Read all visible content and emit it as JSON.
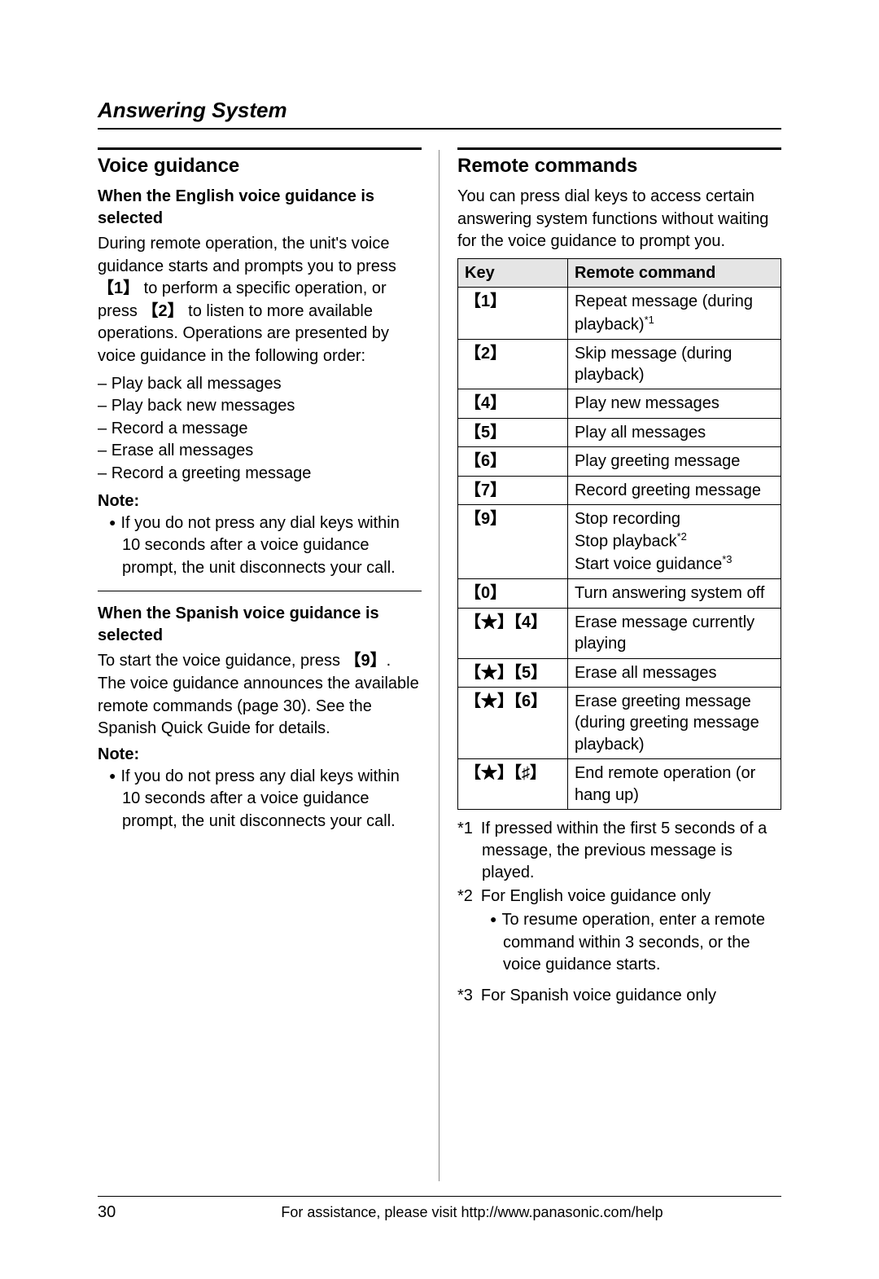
{
  "doc": {
    "sectionTitle": "Answering System",
    "pageNumber": "30",
    "footer": "For assistance, please visit http://www.panasonic.com/help"
  },
  "left": {
    "heading": "Voice guidance",
    "en": {
      "title": "When the English voice guidance is selected",
      "intro1": "During remote operation, the unit's voice guidance starts and prompts you to press ",
      "key1": "1",
      "intro2": " to perform a specific operation, or press ",
      "key2": "2",
      "intro3": " to listen to more available operations. Operations are presented by voice guidance in the following order:",
      "list": [
        "Play back all messages",
        "Play back new messages",
        "Record a message",
        "Erase all messages",
        "Record a greeting message"
      ],
      "noteLabel": "Note:",
      "note": "If you do not press any dial keys within 10 seconds after a voice guidance prompt, the unit disconnects your call."
    },
    "es": {
      "title": "When the Spanish voice guidance is selected",
      "intro1": "To start the voice guidance, press ",
      "key9": "9",
      "intro2": ". The voice guidance announces the available remote commands (page 30). See the Spanish Quick Guide for details.",
      "noteLabel": "Note:",
      "note": "If you do not press any dial keys within 10 seconds after a voice guidance prompt, the unit disconnects your call."
    }
  },
  "right": {
    "heading": "Remote commands",
    "intro": "You can press dial keys to access certain answering system functions without waiting for the voice guidance to prompt you.",
    "table": {
      "headKey": "Key",
      "headCmd": "Remote command",
      "rows": [
        {
          "keyHtml": "<span class='key'>1</span>",
          "cmdHtml": "Repeat message (during playback)<sup>*1</sup>"
        },
        {
          "keyHtml": "<span class='key'>2</span>",
          "cmdHtml": "Skip message (during playback)"
        },
        {
          "keyHtml": "<span class='key'>4</span>",
          "cmdHtml": "Play new messages"
        },
        {
          "keyHtml": "<span class='key'>5</span>",
          "cmdHtml": "Play all messages"
        },
        {
          "keyHtml": "<span class='key'>6</span>",
          "cmdHtml": "Play greeting message"
        },
        {
          "keyHtml": "<span class='key'>7</span>",
          "cmdHtml": "Record greeting message"
        },
        {
          "keyHtml": "<span class='key'>9</span>",
          "cmdHtml": "Stop recording<br>Stop playback<sup>*2</sup><br>Start voice guidance<sup>*3</sup>"
        },
        {
          "keyHtml": "<span class='key'>0</span>",
          "cmdHtml": "Turn answering system off"
        },
        {
          "keyHtml": "<span class='key'>★</span><span class='key'>4</span>",
          "cmdHtml": "Erase message currently playing"
        },
        {
          "keyHtml": "<span class='key'>★</span><span class='key'>5</span>",
          "cmdHtml": "Erase all messages"
        },
        {
          "keyHtml": "<span class='key'>★</span><span class='key'>6</span>",
          "cmdHtml": "Erase greeting message (during greeting message playback)"
        },
        {
          "keyHtml": "<span class='key'>★</span><span class='key'>♯</span>",
          "cmdHtml": "End remote operation (or hang up)"
        }
      ]
    },
    "fn1": "*1 If pressed within the first 5 seconds of a message, the previous message is played.",
    "fn2": "*2 For English voice guidance only",
    "fn2b": "To resume operation, enter a remote command within 3 seconds, or the voice guidance starts.",
    "fn3": "*3 For Spanish voice guidance only"
  }
}
